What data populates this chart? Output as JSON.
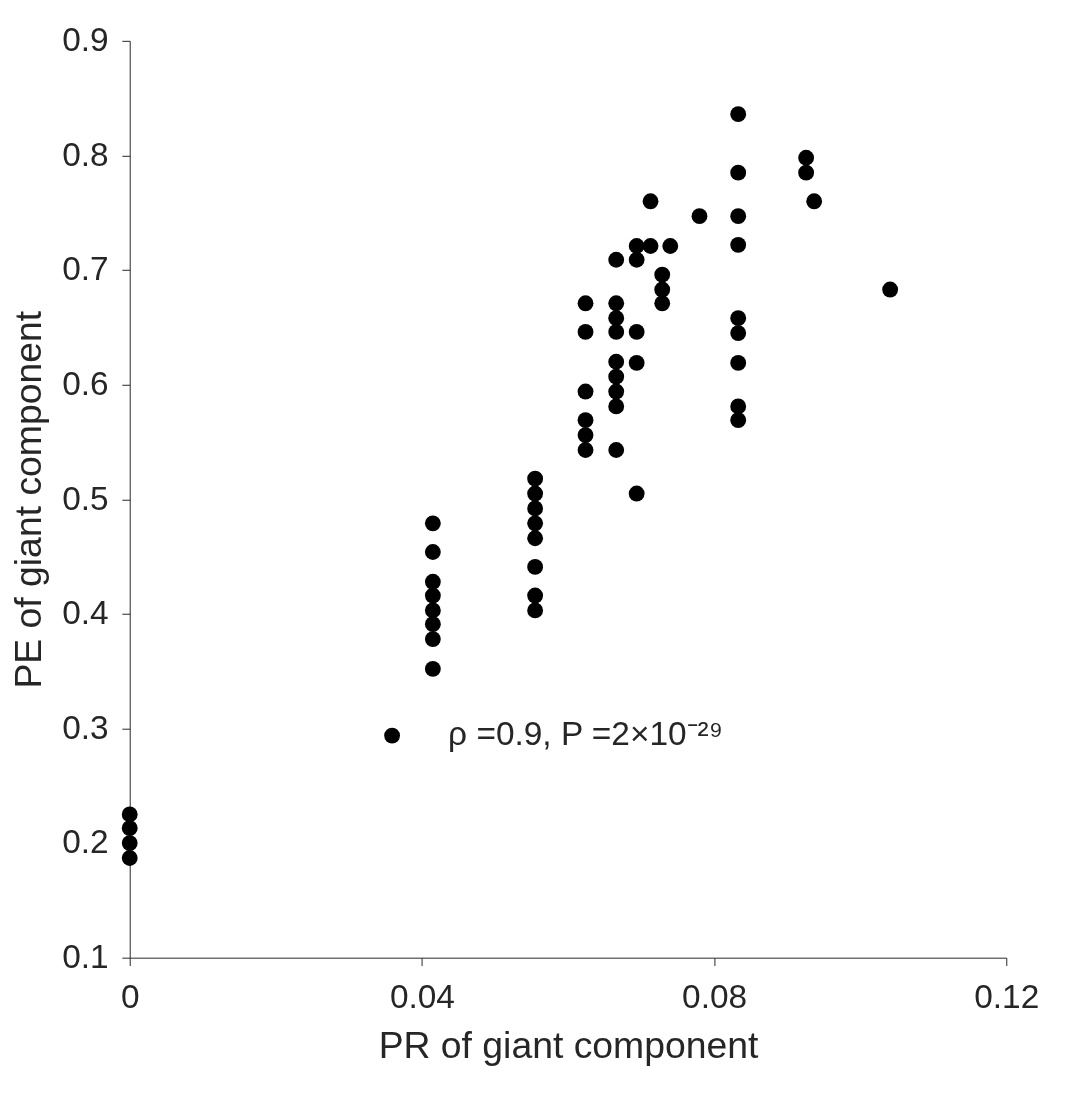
{
  "chart_data": {
    "type": "scatter",
    "xlabel": "PR of giant component",
    "ylabel": "PE of giant component",
    "xlim": [
      0,
      0.12
    ],
    "xticks": [
      0,
      0.04,
      0.08,
      0.12
    ],
    "ylim": [
      0.1,
      0.9
    ],
    "yticks": [
      0.1,
      0.2,
      0.3,
      0.4,
      0.5,
      0.6,
      0.7,
      0.8,
      0.9
    ],
    "grid": false,
    "legend": "bottom",
    "marker": "circle",
    "series": [
      {
        "name": "ρ =0.9, P =2×10⁻²⁹",
        "color": "#000000",
        "x": [
          0,
          0,
          0,
          0,
          0.0415,
          0.0415,
          0.0415,
          0.0415,
          0.0415,
          0.0415,
          0.0415,
          0.0415,
          0.0555,
          0.0555,
          0.0555,
          0.0555,
          0.0555,
          0.0555,
          0.0555,
          0.0555,
          0.0624,
          0.0624,
          0.0624,
          0.0624,
          0.0624,
          0.0624,
          0.0666,
          0.0666,
          0.0666,
          0.0666,
          0.0666,
          0.0666,
          0.0666,
          0.0666,
          0.0666,
          0.0694,
          0.0694,
          0.0694,
          0.0694,
          0.0694,
          0.0713,
          0.0713,
          0.0729,
          0.0729,
          0.0729,
          0.074,
          0.078,
          0.0833,
          0.0833,
          0.0833,
          0.0833,
          0.0833,
          0.0833,
          0.0833,
          0.0833,
          0.0833,
          0.0926,
          0.0926,
          0.0937,
          0.1041
        ],
        "values": [
          0.225,
          0.213,
          0.2,
          0.187,
          0.479,
          0.454,
          0.428,
          0.416,
          0.403,
          0.391,
          0.378,
          0.352,
          0.518,
          0.505,
          0.492,
          0.479,
          0.466,
          0.441,
          0.416,
          0.403,
          0.671,
          0.646,
          0.594,
          0.569,
          0.556,
          0.543,
          0.709,
          0.671,
          0.658,
          0.646,
          0.62,
          0.607,
          0.594,
          0.581,
          0.543,
          0.721,
          0.709,
          0.646,
          0.619,
          0.505,
          0.76,
          0.721,
          0.696,
          0.683,
          0.671,
          0.721,
          0.747,
          0.836,
          0.785,
          0.747,
          0.722,
          0.658,
          0.645,
          0.619,
          0.581,
          0.569,
          0.798,
          0.785,
          0.76,
          0.683
        ]
      }
    ]
  }
}
